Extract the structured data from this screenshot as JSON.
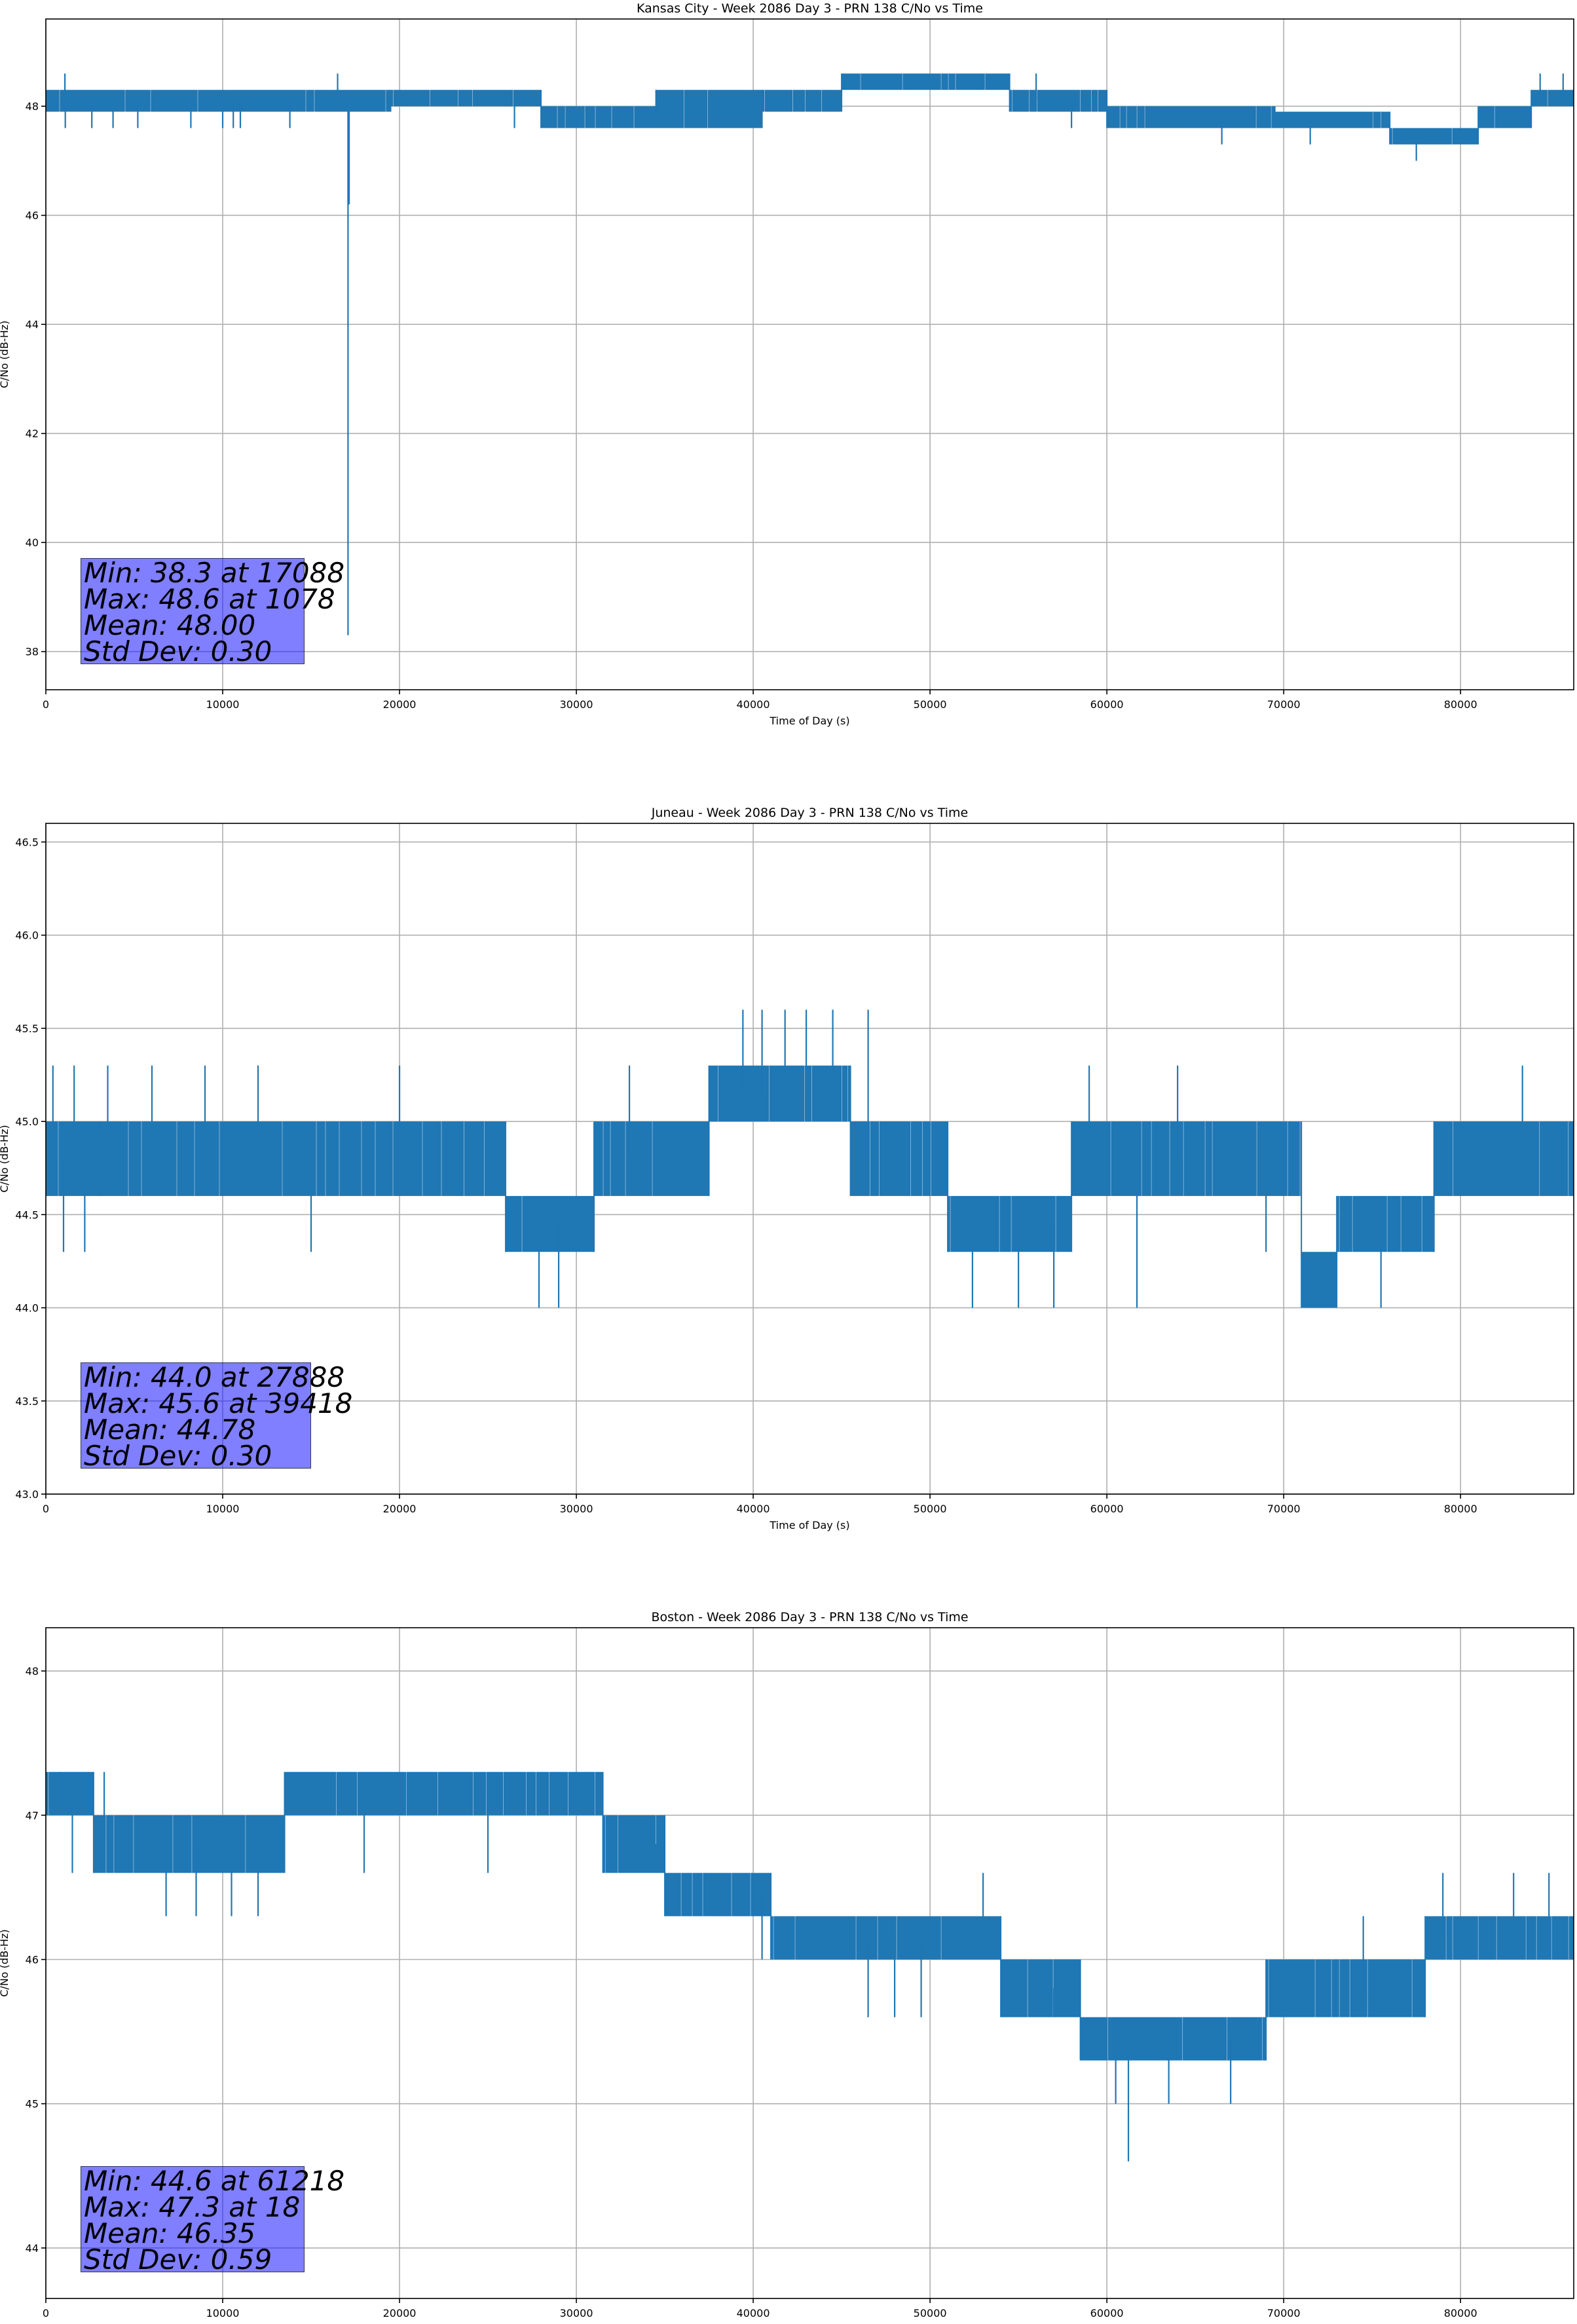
{
  "chart_data": [
    {
      "type": "line",
      "title": "Kansas City - Week 2086 Day 3 - PRN 138 C/No vs Time",
      "xlabel": "Time of Day (s)",
      "ylabel": "C/No (dB-Hz)",
      "xlim": [
        0,
        86400
      ],
      "ylim": [
        37.3,
        49.6
      ],
      "xticks": [
        0,
        10000,
        20000,
        30000,
        40000,
        50000,
        60000,
        70000,
        80000
      ],
      "yticks": [
        38,
        40,
        42,
        44,
        46,
        48
      ],
      "grid": true,
      "series_color": "#1f77b4",
      "series": [
        {
          "bands": [
            {
              "x0": 0,
              "x1": 19500,
              "lo": 47.9,
              "hi": 48.3
            },
            {
              "x0": 19500,
              "x1": 28000,
              "lo": 48.0,
              "hi": 48.3
            },
            {
              "x0": 28000,
              "x1": 34500,
              "lo": 47.6,
              "hi": 48.0
            },
            {
              "x0": 34500,
              "x1": 40500,
              "lo": 47.6,
              "hi": 48.3
            },
            {
              "x0": 40500,
              "x1": 45000,
              "lo": 47.9,
              "hi": 48.3
            },
            {
              "x0": 45000,
              "x1": 54500,
              "lo": 48.3,
              "hi": 48.6
            },
            {
              "x0": 54500,
              "x1": 60000,
              "lo": 47.9,
              "hi": 48.3
            },
            {
              "x0": 60000,
              "x1": 69500,
              "lo": 47.6,
              "hi": 48.0
            },
            {
              "x0": 69500,
              "x1": 76000,
              "lo": 47.6,
              "hi": 47.9
            },
            {
              "x0": 76000,
              "x1": 81000,
              "lo": 47.3,
              "hi": 47.6
            },
            {
              "x0": 81000,
              "x1": 84000,
              "lo": 47.6,
              "hi": 48.0
            },
            {
              "x0": 84000,
              "x1": 86400,
              "lo": 48.0,
              "hi": 48.3
            }
          ],
          "spikes": [
            {
              "x": 1078,
              "y": 48.6
            },
            {
              "x": 1100,
              "y": 47.6
            },
            {
              "x": 2600,
              "y": 47.6
            },
            {
              "x": 3800,
              "y": 47.6
            },
            {
              "x": 5200,
              "y": 47.6
            },
            {
              "x": 8200,
              "y": 47.6
            },
            {
              "x": 10000,
              "y": 47.6
            },
            {
              "x": 10600,
              "y": 47.6
            },
            {
              "x": 11000,
              "y": 47.6
            },
            {
              "x": 13800,
              "y": 47.6
            },
            {
              "x": 16500,
              "y": 48.6
            },
            {
              "x": 17088,
              "y": 38.3
            },
            {
              "x": 17150,
              "y": 46.2
            },
            {
              "x": 26500,
              "y": 47.6
            },
            {
              "x": 36500,
              "y": 47.6
            },
            {
              "x": 39500,
              "y": 47.6
            },
            {
              "x": 44000,
              "y": 48.0
            },
            {
              "x": 56000,
              "y": 48.6
            },
            {
              "x": 58000,
              "y": 47.6
            },
            {
              "x": 64500,
              "y": 47.6
            },
            {
              "x": 66500,
              "y": 47.3
            },
            {
              "x": 71500,
              "y": 47.3
            },
            {
              "x": 77500,
              "y": 47.0
            },
            {
              "x": 80500,
              "y": 47.3
            },
            {
              "x": 84500,
              "y": 48.6
            },
            {
              "x": 85800,
              "y": 48.6
            }
          ]
        }
      ],
      "stats": [
        "Min: 38.3 at 17088",
        "Max: 48.6 at 1078",
        "Mean: 48.00",
        "Std Dev: 0.30"
      ]
    },
    {
      "type": "line",
      "title": "Juneau - Week 2086 Day 3 - PRN 138 C/No vs Time",
      "xlabel": "Time of Day (s)",
      "ylabel": "C/No (dB-Hz)",
      "xlim": [
        0,
        86400
      ],
      "ylim": [
        43.0,
        46.6
      ],
      "xticks": [
        0,
        10000,
        20000,
        30000,
        40000,
        50000,
        60000,
        70000,
        80000
      ],
      "yticks": [
        43.0,
        43.5,
        44.0,
        44.5,
        45.0,
        45.5,
        46.0,
        46.5
      ],
      "grid": true,
      "series_color": "#1f77b4",
      "series": [
        {
          "bands": [
            {
              "x0": 0,
              "x1": 3000,
              "lo": 44.6,
              "hi": 45.0
            },
            {
              "x0": 3000,
              "x1": 23500,
              "lo": 44.6,
              "hi": 45.0
            },
            {
              "x0": 23500,
              "x1": 26000,
              "lo": 44.6,
              "hi": 45.0
            },
            {
              "x0": 26000,
              "x1": 31000,
              "lo": 44.3,
              "hi": 44.6
            },
            {
              "x0": 31000,
              "x1": 37500,
              "lo": 44.6,
              "hi": 45.0
            },
            {
              "x0": 37500,
              "x1": 45500,
              "lo": 45.0,
              "hi": 45.3
            },
            {
              "x0": 45500,
              "x1": 51000,
              "lo": 44.6,
              "hi": 45.0
            },
            {
              "x0": 51000,
              "x1": 58000,
              "lo": 44.3,
              "hi": 44.6
            },
            {
              "x0": 58000,
              "x1": 71000,
              "lo": 44.6,
              "hi": 45.0
            },
            {
              "x0": 71000,
              "x1": 73000,
              "lo": 44.0,
              "hi": 44.3
            },
            {
              "x0": 73000,
              "x1": 78500,
              "lo": 44.3,
              "hi": 44.6
            },
            {
              "x0": 78500,
              "x1": 86400,
              "lo": 44.6,
              "hi": 45.0
            }
          ],
          "spikes": [
            {
              "x": 400,
              "y": 45.3
            },
            {
              "x": 1000,
              "y": 44.3
            },
            {
              "x": 1600,
              "y": 45.3
            },
            {
              "x": 2200,
              "y": 44.3
            },
            {
              "x": 3500,
              "y": 45.3
            },
            {
              "x": 6000,
              "y": 45.3
            },
            {
              "x": 9000,
              "y": 45.3
            },
            {
              "x": 12000,
              "y": 45.3
            },
            {
              "x": 15000,
              "y": 44.3
            },
            {
              "x": 20000,
              "y": 45.3
            },
            {
              "x": 27888,
              "y": 44.0
            },
            {
              "x": 29000,
              "y": 44.0
            },
            {
              "x": 33000,
              "y": 45.3
            },
            {
              "x": 39418,
              "y": 45.6
            },
            {
              "x": 40500,
              "y": 45.6
            },
            {
              "x": 41800,
              "y": 45.6
            },
            {
              "x": 43000,
              "y": 45.6
            },
            {
              "x": 44500,
              "y": 45.6
            },
            {
              "x": 46500,
              "y": 45.6
            },
            {
              "x": 52400,
              "y": 44.0
            },
            {
              "x": 55000,
              "y": 44.0
            },
            {
              "x": 57000,
              "y": 44.0
            },
            {
              "x": 59000,
              "y": 45.3
            },
            {
              "x": 61700,
              "y": 44.0
            },
            {
              "x": 64000,
              "y": 45.3
            },
            {
              "x": 69000,
              "y": 44.3
            },
            {
              "x": 75500,
              "y": 44.0
            },
            {
              "x": 83500,
              "y": 45.3
            }
          ]
        }
      ],
      "stats": [
        "Min: 44.0 at 27888",
        "Max: 45.6 at 39418",
        "Mean: 44.78",
        "Std Dev: 0.30"
      ]
    },
    {
      "type": "line",
      "title": "Boston - Week 2086 Day 3 - PRN 138 C/No vs Time",
      "xlabel": "Time of Day (s)",
      "ylabel": "C/No (dB-Hz)",
      "xlim": [
        0,
        86400
      ],
      "ylim": [
        43.65,
        48.3
      ],
      "xticks": [
        0,
        10000,
        20000,
        30000,
        40000,
        50000,
        60000,
        70000,
        80000
      ],
      "yticks": [
        44,
        45,
        46,
        47,
        48
      ],
      "grid": true,
      "series_color": "#1f77b4",
      "series": [
        {
          "bands": [
            {
              "x0": 0,
              "x1": 2700,
              "lo": 47.0,
              "hi": 47.3
            },
            {
              "x0": 2700,
              "x1": 13500,
              "lo": 46.6,
              "hi": 47.0
            },
            {
              "x0": 13500,
              "x1": 31500,
              "lo": 47.0,
              "hi": 47.3
            },
            {
              "x0": 31500,
              "x1": 35000,
              "lo": 46.6,
              "hi": 47.0
            },
            {
              "x0": 35000,
              "x1": 41000,
              "lo": 46.3,
              "hi": 46.6
            },
            {
              "x0": 41000,
              "x1": 54000,
              "lo": 46.0,
              "hi": 46.3
            },
            {
              "x0": 54000,
              "x1": 58500,
              "lo": 45.6,
              "hi": 46.0
            },
            {
              "x0": 58500,
              "x1": 69000,
              "lo": 45.3,
              "hi": 45.6
            },
            {
              "x0": 69000,
              "x1": 74000,
              "lo": 45.6,
              "hi": 46.0
            },
            {
              "x0": 74000,
              "x1": 78000,
              "lo": 45.6,
              "hi": 46.0
            },
            {
              "x0": 78000,
              "x1": 86400,
              "lo": 46.0,
              "hi": 46.3
            }
          ],
          "spikes": [
            {
              "x": 18,
              "y": 47.3
            },
            {
              "x": 800,
              "y": 47.3
            },
            {
              "x": 1500,
              "y": 46.6
            },
            {
              "x": 2400,
              "y": 47.3
            },
            {
              "x": 3300,
              "y": 47.3
            },
            {
              "x": 6800,
              "y": 46.3
            },
            {
              "x": 8500,
              "y": 46.3
            },
            {
              "x": 10500,
              "y": 46.3
            },
            {
              "x": 12000,
              "y": 46.3
            },
            {
              "x": 18000,
              "y": 46.6
            },
            {
              "x": 25000,
              "y": 46.6
            },
            {
              "x": 34500,
              "y": 46.6
            },
            {
              "x": 40500,
              "y": 46.0
            },
            {
              "x": 46500,
              "y": 45.6
            },
            {
              "x": 48000,
              "y": 45.6
            },
            {
              "x": 49500,
              "y": 45.6
            },
            {
              "x": 53000,
              "y": 46.6
            },
            {
              "x": 57000,
              "y": 45.6
            },
            {
              "x": 60500,
              "y": 45.0
            },
            {
              "x": 61218,
              "y": 44.6
            },
            {
              "x": 63500,
              "y": 45.0
            },
            {
              "x": 67000,
              "y": 45.0
            },
            {
              "x": 69500,
              "y": 46.0
            },
            {
              "x": 74500,
              "y": 46.3
            },
            {
              "x": 79000,
              "y": 46.6
            },
            {
              "x": 83000,
              "y": 46.6
            },
            {
              "x": 85000,
              "y": 46.6
            }
          ]
        }
      ],
      "stats": [
        "Min: 44.6 at 61218",
        "Max: 47.3 at 18",
        "Mean: 46.35",
        "Std Dev: 0.59"
      ]
    }
  ]
}
